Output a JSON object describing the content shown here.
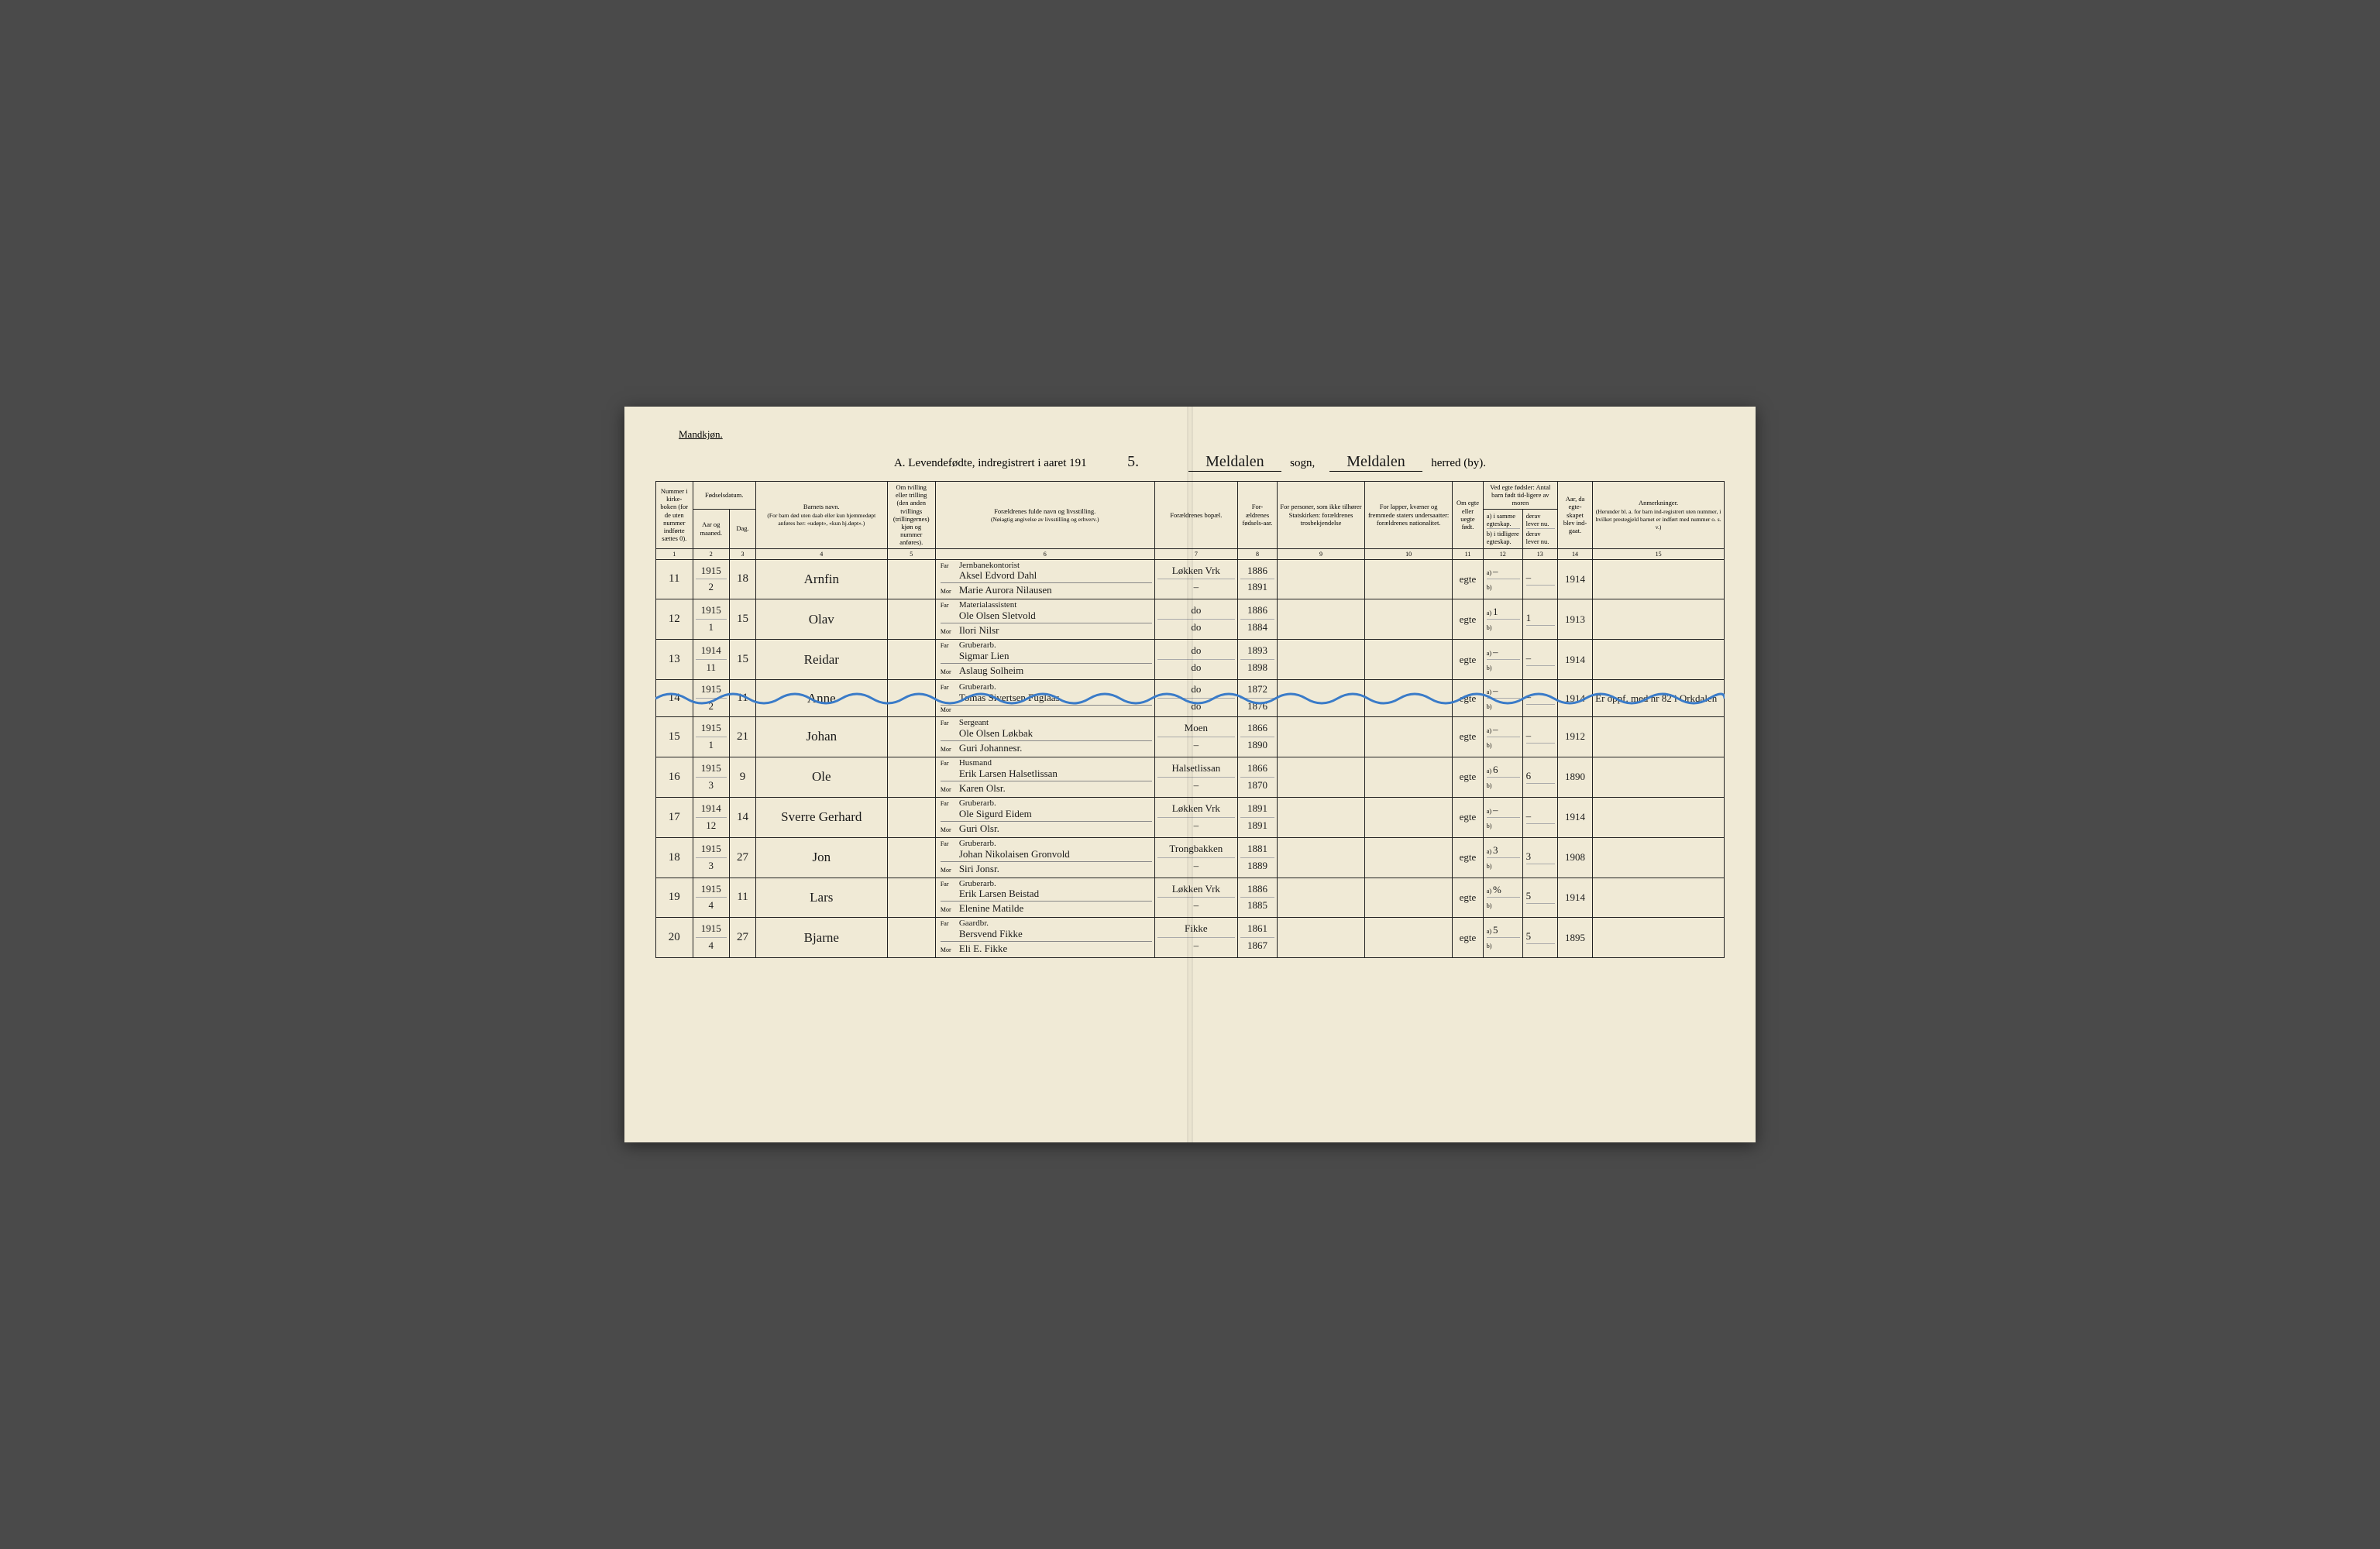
{
  "header": {
    "gender_label": "Mandkjøn.",
    "title_prefix": "A.  Levendefødte, indregistrert i aaret 191",
    "year_suffix": "5.",
    "parish_hand": "Meldalen",
    "parish_lbl": "sogn,",
    "district_hand": "Meldalen",
    "district_lbl": "herred (by)."
  },
  "columns": {
    "c1": "Nummer i kirke-boken (for de uten nummer indførte sættes 0).",
    "c2_top": "Fødselsdatum.",
    "c2a": "Aar og maaned.",
    "c2b": "Dag.",
    "c4_top": "Barnets navn.",
    "c4_sub": "(For barn død uten daab eller kun hjemmedøpt anføres her: «udøpt», «kun hj.døpt».)",
    "c5_top": "Om tvilling eller trilling (den anden tvillings (trillingernes) kjøn og nummer anføres).",
    "c6_top": "Forældrenes fulde navn og livsstilling.",
    "c6_sub": "(Nøiagtig angivelse av livsstilling og erhverv.)",
    "c7": "Forældrenes bopæl.",
    "c8": "For-ældrenes fødsels-aar.",
    "c9": "For personer, som ikke tilhører Statskirken: forældrenes trosbekjendelse",
    "c10": "For lapper, kvæner og fremmede staters undersaatter: forældrenes nationalitet.",
    "c11": "Om egte eller uegte født.",
    "c12_top": "Ved egte fødsler: Antal barn født tid-ligere av moren",
    "c12a": "a) i samme egteskap.",
    "c12b": "b) i tidligere egteskap.",
    "c13a": "derav lever nu.",
    "c13b": "derav lever nu.",
    "c14": "Aar, da egte-skapet blev ind-gaat.",
    "c15_top": "Anmerkninger.",
    "c15_sub": "(Herunder bl. a. for barn ind-registrert uten nummer, i hvilket prestegjeld barnet er indført med nummer o. s. v.)",
    "far": "Far",
    "mor": "Mor"
  },
  "colnums": [
    "1",
    "2",
    "3",
    "4",
    "5",
    "6",
    "7",
    "8",
    "9",
    "10",
    "11",
    "12",
    "13",
    "14",
    "15"
  ],
  "rows": [
    {
      "no": "11",
      "ym": "1915\n2",
      "day": "18",
      "name": "Arnfin",
      "occ": "Jernbanekontorist",
      "far": "Aksel Edvord Dahl",
      "mor": "Marie Aurora Nilausen",
      "place": "Løkken Vrk",
      "place2": "–",
      "yf": "1886",
      "ym2": "1891",
      "legit": "egte",
      "a": "–",
      "b": "",
      "al": "–",
      "bl": "",
      "marr": "1914",
      "note": ""
    },
    {
      "no": "12",
      "ym": "1915\n1",
      "day": "15",
      "name": "Olav",
      "occ": "Materialassistent",
      "far": "Ole Olsen Sletvold",
      "mor": "Ilori Nilsr",
      "place": "do",
      "place2": "do",
      "yf": "1886",
      "ym2": "1884",
      "legit": "egte",
      "a": "1",
      "b": "",
      "al": "1",
      "bl": "",
      "marr": "1913",
      "note": ""
    },
    {
      "no": "13",
      "ym": "1914\n11",
      "day": "15",
      "name": "Reidar",
      "occ": "Gruberarb.",
      "far": "Sigmar Lien",
      "mor": "Aslaug Solheim",
      "place": "do",
      "place2": "do",
      "yf": "1893",
      "ym2": "1898",
      "legit": "egte",
      "a": "–",
      "b": "",
      "al": "–",
      "bl": "",
      "marr": "1914",
      "note": ""
    },
    {
      "no": "14",
      "ym": "1915\n2",
      "day": "11",
      "name": "Anne",
      "occ": "Gruberarb.",
      "far": "Tomas Sivertsen Fuglaas",
      "mor": "",
      "place": "do",
      "place2": "do",
      "yf": "1872",
      "ym2": "1876",
      "legit": "egte",
      "a": "–",
      "b": "",
      "al": "–",
      "bl": "",
      "marr": "1914",
      "note": "Er oppf. med nr 82 i Orkdalen"
    },
    {
      "no": "15",
      "ym": "1915\n1",
      "day": "21",
      "name": "Johan",
      "occ": "Sergeant",
      "far": "Ole Olsen Løkbak",
      "mor": "Guri Johannesr.",
      "place": "Moen",
      "place2": "–",
      "yf": "1866",
      "ym2": "1890",
      "legit": "egte",
      "a": "–",
      "b": "",
      "al": "–",
      "bl": "",
      "marr": "1912",
      "note": ""
    },
    {
      "no": "16",
      "ym": "1915\n3",
      "day": "9",
      "name": "Ole",
      "occ": "Husmand",
      "far": "Erik Larsen Halsetlissan",
      "mor": "Karen Olsr.",
      "place": "Halsetlissan",
      "place2": "–",
      "yf": "1866",
      "ym2": "1870",
      "legit": "egte",
      "a": "6",
      "b": "",
      "al": "6",
      "bl": "",
      "marr": "1890",
      "note": ""
    },
    {
      "no": "17",
      "ym": "1914\n12",
      "day": "14",
      "name": "Sverre Gerhard",
      "occ": "Gruberarb.",
      "far": "Ole Sigurd Eidem",
      "mor": "Guri Olsr.",
      "place": "Løkken Vrk",
      "place2": "–",
      "yf": "1891",
      "ym2": "1891",
      "legit": "egte",
      "a": "–",
      "b": "",
      "al": "–",
      "bl": "",
      "marr": "1914",
      "note": ""
    },
    {
      "no": "18",
      "ym": "1915\n3",
      "day": "27",
      "name": "Jon",
      "occ": "Gruberarb.",
      "far": "Johan Nikolaisen Gronvold",
      "mor": "Siri Jonsr.",
      "place": "Trongbakken",
      "place2": "–",
      "yf": "1881",
      "ym2": "1889",
      "legit": "egte",
      "a": "3",
      "b": "",
      "al": "3",
      "bl": "",
      "marr": "1908",
      "note": ""
    },
    {
      "no": "19",
      "ym": "1915\n4",
      "day": "11",
      "name": "Lars",
      "occ": "Gruberarb.",
      "far": "Erik Larsen Beistad",
      "mor": "Elenine Matilde",
      "place": "Løkken Vrk",
      "place2": "–",
      "yf": "1886",
      "ym2": "1885",
      "legit": "egte",
      "a": "%",
      "b": "",
      "al": "5",
      "bl": "",
      "marr": "1914",
      "note": ""
    },
    {
      "no": "20",
      "ym": "1915\n4",
      "day": "27",
      "name": "Bjarne",
      "occ": "Gaardbr.",
      "far": "Bersvend Fikke",
      "mor": "Eli E. Fikke",
      "place": "Fikke",
      "place2": "–",
      "yf": "1861",
      "ym2": "1867",
      "legit": "egte",
      "a": "5",
      "b": "",
      "al": "5",
      "bl": "",
      "marr": "1895",
      "note": ""
    }
  ],
  "style": {
    "paper_color": "#f0ead6",
    "ink_color": "#1a1a1a",
    "wavy_color": "#3a7bc8",
    "border_color": "#222222"
  }
}
